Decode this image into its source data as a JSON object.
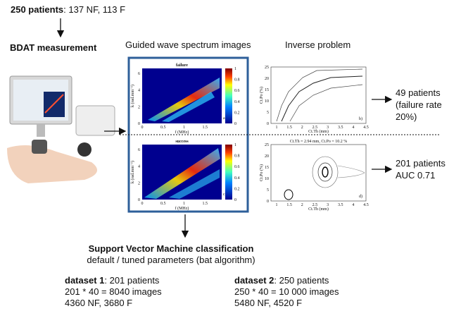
{
  "header": {
    "bold": "250 patients",
    "rest": ": 137 NF, 113 F"
  },
  "measurement": "BDAT measurement",
  "spectrum_title": "Guided wave spectrum images",
  "inverse_title": "Inverse problem",
  "spectra": [
    {
      "title": "failure",
      "label": "a)"
    },
    {
      "title": "success",
      "label": "c)"
    }
  ],
  "spectrum_axes": {
    "x_label": "f (MHz)",
    "y_label": "k (rad.mm⁻¹)",
    "x_ticks": [
      "0",
      "0.5",
      "1",
      "1.5"
    ],
    "y_ticks": [
      "0",
      "2",
      "4",
      "6"
    ],
    "colorbar_ticks": [
      "0",
      "0.2",
      "0.4",
      "0.6",
      "0.8",
      "1"
    ]
  },
  "inverse": [
    {
      "label": "b)"
    },
    {
      "label": "d)",
      "annotation": "Ct.Th = 2.94 mm, Ct.Po = 10.2 %"
    }
  ],
  "inverse_axes": {
    "x_label": "Ct.Th (mm)",
    "y_label": "Ct.Po (%)",
    "x_ticks": [
      "1",
      "1.5",
      "2",
      "2.5",
      "3",
      "3.5",
      "4",
      "4.5"
    ],
    "y_ticks": [
      "0",
      "5",
      "10",
      "15",
      "20",
      "25"
    ]
  },
  "outcomes": [
    {
      "lines": [
        "49 patients",
        "(failure rate",
        "20%)"
      ]
    },
    {
      "lines": [
        "201 patients",
        "AUC 0.71"
      ]
    }
  ],
  "svm": {
    "title": "Support Vector Machine classification",
    "subtitle": "default / tuned parameters (bat algorithm)"
  },
  "datasets": [
    {
      "name": "dataset 1",
      "rest": ": 201 patients",
      "lines": [
        "201 * 40 = 8040 images",
        "4360 NF, 3680 F"
      ]
    },
    {
      "name": "dataset 2",
      "rest": ": 250 patients",
      "lines": [
        "250 * 40 = 10 000 images",
        "5480 NF, 4520 F"
      ]
    }
  ]
}
